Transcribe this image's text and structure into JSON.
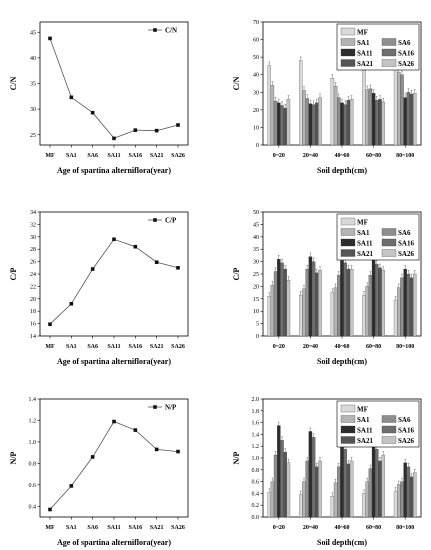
{
  "chart_data": [
    {
      "type": "line",
      "x": [
        "MF",
        "SA1",
        "SA6",
        "SA11",
        "SA16",
        "SA21",
        "SA26"
      ],
      "series": [
        {
          "name": "C/N",
          "values": [
            43.8,
            32.3,
            29.3,
            24.3,
            25.9,
            25.8,
            26.9
          ]
        }
      ],
      "xlabel": "Age of spartina alterniflora(year)",
      "ylabel": "C/N",
      "ylim": [
        23,
        47
      ],
      "yticks": [
        25,
        30,
        35,
        40,
        45
      ],
      "legend": "top-right",
      "grid": false
    },
    {
      "type": "bar",
      "categories": [
        "0~20",
        "20~40",
        "40~60",
        "60~80",
        "80~100"
      ],
      "series": [
        {
          "name": "MF",
          "values": [
            45.2,
            48.0,
            38.0,
            42.5,
            43.5
          ]
        },
        {
          "name": "SA1",
          "values": [
            34.0,
            31.0,
            33.5,
            31.5,
            41.5
          ]
        },
        {
          "name": "SA6",
          "values": [
            25.0,
            26.5,
            27.0,
            32.0,
            40.0
          ]
        },
        {
          "name": "SA11",
          "values": [
            24.0,
            23.5,
            24.0,
            29.5,
            27.0
          ]
        },
        {
          "name": "SA16",
          "values": [
            22.5,
            23.0,
            23.0,
            25.5,
            30.0
          ]
        },
        {
          "name": "SA21",
          "values": [
            21.0,
            24.0,
            25.5,
            26.0,
            29.0
          ]
        },
        {
          "name": "SA26",
          "values": [
            26.0,
            27.0,
            26.0,
            24.5,
            29.5
          ]
        }
      ],
      "colors": [
        "#d9d9d9",
        "#b4b4b4",
        "#8e8e8e",
        "#2e2e2e",
        "#6e6e6e",
        "#555555",
        "#c4c4c4"
      ],
      "xlabel": "Soil depth(cm)",
      "ylabel": "C/N",
      "ylim": [
        0,
        70
      ],
      "yticks": [
        0,
        10,
        20,
        30,
        40,
        50,
        60,
        70
      ],
      "legend": "top-right",
      "grid": false
    },
    {
      "type": "line",
      "x": [
        "MF",
        "SA1",
        "SA6",
        "SA11",
        "SA16",
        "SA21",
        "SA26"
      ],
      "series": [
        {
          "name": "C/P",
          "values": [
            15.9,
            19.2,
            24.8,
            29.6,
            28.4,
            25.9,
            25.0
          ]
        }
      ],
      "xlabel": "Age of spartina alterniflora(year)",
      "ylabel": "C/P",
      "ylim": [
        14,
        34
      ],
      "yticks": [
        14,
        16,
        18,
        20,
        22,
        24,
        26,
        28,
        30,
        32,
        34
      ],
      "legend": "top-right",
      "grid": false
    },
    {
      "type": "bar",
      "categories": [
        "0~20",
        "20~40",
        "40~60",
        "60~80",
        "80~100"
      ],
      "series": [
        {
          "name": "MF",
          "values": [
            16.0,
            16.5,
            17.5,
            16.5,
            14.5
          ]
        },
        {
          "name": "SA1",
          "values": [
            20.5,
            19.0,
            19.5,
            20.0,
            19.5
          ]
        },
        {
          "name": "SA6",
          "values": [
            26.0,
            27.0,
            24.5,
            24.5,
            23.5
          ]
        },
        {
          "name": "SA11",
          "values": [
            31.0,
            32.0,
            30.5,
            32.0,
            27.0
          ]
        },
        {
          "name": "SA16",
          "values": [
            29.5,
            30.0,
            29.5,
            29.0,
            25.0
          ]
        },
        {
          "name": "SA21",
          "values": [
            27.0,
            25.5,
            27.0,
            27.5,
            23.5
          ]
        },
        {
          "name": "SA26",
          "values": [
            22.5,
            26.5,
            27.0,
            26.5,
            25.0
          ]
        }
      ],
      "colors": [
        "#d9d9d9",
        "#b4b4b4",
        "#8e8e8e",
        "#2e2e2e",
        "#6e6e6e",
        "#555555",
        "#c4c4c4"
      ],
      "xlabel": "Soil depth(cm)",
      "ylabel": "C/P",
      "ylim": [
        0,
        50
      ],
      "yticks": [
        0,
        5,
        10,
        15,
        20,
        25,
        30,
        35,
        40,
        45,
        50
      ],
      "legend": "top-right",
      "grid": false
    },
    {
      "type": "line",
      "x": [
        "MF",
        "SA1",
        "SA6",
        "SA11",
        "SA16",
        "SA21",
        "SA26"
      ],
      "series": [
        {
          "name": "N/P",
          "values": [
            0.37,
            0.59,
            0.86,
            1.19,
            1.11,
            0.93,
            0.91
          ]
        }
      ],
      "xlabel": "Age of spartina alterniflora(year)",
      "ylabel": "N/P",
      "ylim": [
        0.3,
        1.4
      ],
      "yticks": [
        0.4,
        0.6,
        0.8,
        1.0,
        1.2,
        1.4
      ],
      "legend": "top-right",
      "grid": false
    },
    {
      "type": "bar",
      "categories": [
        "0~20",
        "20~40",
        "40~60",
        "60~80",
        "80~100"
      ],
      "series": [
        {
          "name": "MF",
          "values": [
            0.42,
            0.38,
            0.35,
            0.4,
            0.44
          ]
        },
        {
          "name": "SA1",
          "values": [
            0.6,
            0.6,
            0.58,
            0.6,
            0.55
          ]
        },
        {
          "name": "SA6",
          "values": [
            1.05,
            0.95,
            0.85,
            0.82,
            0.6
          ]
        },
        {
          "name": "SA11",
          "values": [
            1.55,
            1.45,
            1.25,
            1.3,
            0.92
          ]
        },
        {
          "name": "SA16",
          "values": [
            1.3,
            1.35,
            1.15,
            1.15,
            0.85
          ]
        },
        {
          "name": "SA21",
          "values": [
            1.1,
            0.85,
            0.9,
            0.95,
            0.68
          ]
        },
        {
          "name": "SA26",
          "values": [
            0.92,
            0.95,
            0.95,
            1.05,
            0.75
          ]
        }
      ],
      "colors": [
        "#d9d9d9",
        "#b4b4b4",
        "#8e8e8e",
        "#2e2e2e",
        "#6e6e6e",
        "#555555",
        "#c4c4c4"
      ],
      "xlabel": "Soil depth(cm)",
      "ylabel": "N/P",
      "ylim": [
        0,
        2.0
      ],
      "yticks": [
        0,
        0.2,
        0.4,
        0.6,
        0.8,
        1.0,
        1.2,
        1.4,
        1.6,
        1.8,
        2.0
      ],
      "legend": "top-right",
      "grid": false
    }
  ]
}
